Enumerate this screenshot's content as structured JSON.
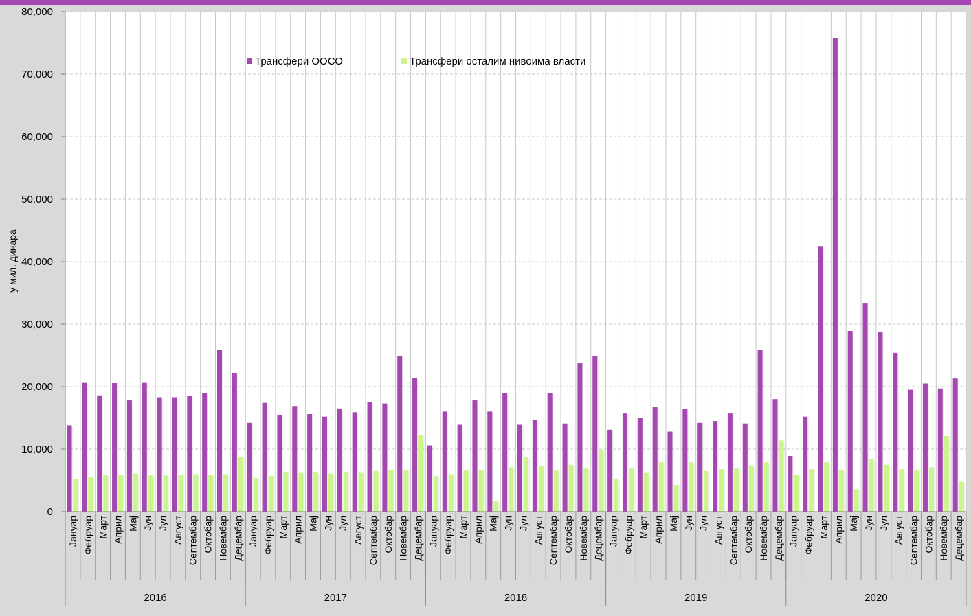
{
  "colors": {
    "ooso": "#a547b0",
    "other": "#ccf58c",
    "background": "#d9d9d9",
    "plot": "#ffffff",
    "top_bar": "#a547b0"
  },
  "chart_data": {
    "type": "bar",
    "ylabel": "у мил. динара",
    "ylim": [
      0,
      80000
    ],
    "yticks": [
      "0",
      "10,000",
      "20,000",
      "30,000",
      "40,000",
      "50,000",
      "60,000",
      "70,000",
      "80,000"
    ],
    "grid": true,
    "legend_position": "top-center",
    "months": [
      "Јануар",
      "Фебруар",
      "Март",
      "Април",
      "Мај",
      "Јун",
      "Јул",
      "Август",
      "Септембар",
      "Октобар",
      "Новембар",
      "Децембар"
    ],
    "years": [
      "2016",
      "2017",
      "2018",
      "2019",
      "2020"
    ],
    "series": [
      {
        "name": "Трансфери ООСО",
        "values": [
          13800,
          20700,
          18600,
          20600,
          17800,
          20700,
          18300,
          18300,
          18500,
          18900,
          25900,
          22200,
          14200,
          17400,
          15500,
          16900,
          15600,
          15200,
          16500,
          15900,
          17500,
          17300,
          24900,
          21400,
          10600,
          16000,
          13900,
          17800,
          16000,
          18900,
          13900,
          14700,
          18900,
          14100,
          23800,
          24900,
          13100,
          15700,
          15000,
          16700,
          12800,
          16400,
          14200,
          14500,
          15700,
          14100,
          25900,
          18000,
          8900,
          15200,
          42500,
          75800,
          28900,
          33400,
          28800,
          25400,
          19500,
          20500,
          19700,
          21300
        ]
      },
      {
        "name": "Трансфери осталим нивоима власти",
        "values": [
          5200,
          5500,
          5900,
          5900,
          6100,
          5800,
          5800,
          5900,
          6000,
          5900,
          6000,
          8800,
          5400,
          5700,
          6300,
          6200,
          6300,
          6100,
          6400,
          6200,
          6500,
          6600,
          6700,
          12300,
          5700,
          6000,
          6600,
          6600,
          1700,
          7100,
          8800,
          7300,
          6600,
          7500,
          6900,
          9800,
          5200,
          6900,
          6200,
          7900,
          4300,
          7900,
          6500,
          6800,
          6900,
          7400,
          7900,
          11400,
          5900,
          6800,
          7900,
          6600,
          3600,
          8400,
          7500,
          6800,
          6600,
          7100,
          12100,
          4800
        ]
      }
    ]
  }
}
